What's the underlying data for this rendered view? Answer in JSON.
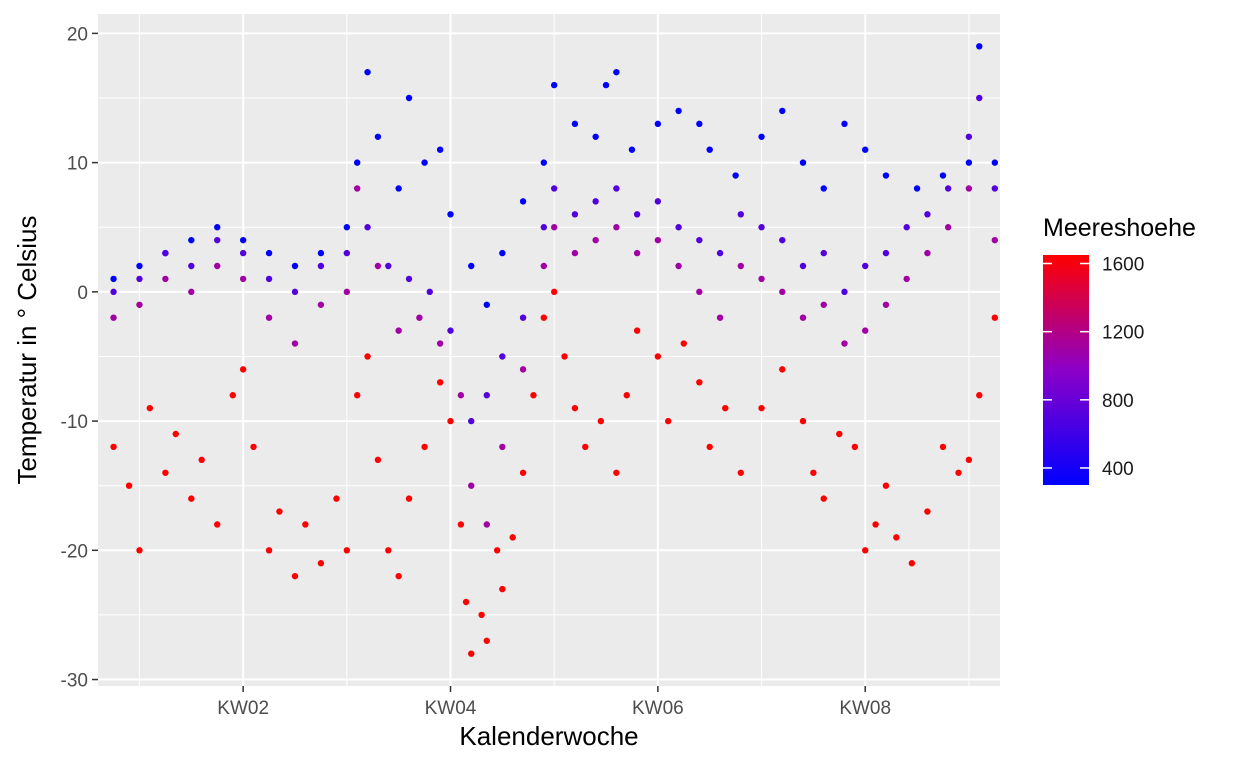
{
  "chart_data": {
    "type": "scatter",
    "title": "",
    "xlabel": "Kalenderwoche",
    "ylabel": "Temperatur in ° Celsius",
    "x_tick_labels": [
      "KW02",
      "KW04",
      "KW06",
      "KW08"
    ],
    "x_tick_weeks": [
      2,
      4,
      6,
      8
    ],
    "xlim_weeks": [
      0.6,
      9.3
    ],
    "y_ticks": [
      -30,
      -20,
      -10,
      0,
      10,
      20
    ],
    "ylim": [
      -30.5,
      21.5
    ],
    "grid": true,
    "legend": {
      "title": "Meereshoehe",
      "placement": "right",
      "type": "colorbar",
      "labels": [
        1600,
        1200,
        800,
        400
      ],
      "range": [
        300,
        1650
      ],
      "low_color": "#0000FF",
      "high_color": "#FF0000"
    },
    "series": [
      {
        "color_value": 300,
        "points": [
          [
            0.75,
            1
          ],
          [
            1.0,
            2
          ],
          [
            1.25,
            3
          ],
          [
            1.5,
            4
          ],
          [
            1.75,
            5
          ],
          [
            2.0,
            4
          ],
          [
            2.25,
            3
          ],
          [
            2.5,
            2
          ],
          [
            2.75,
            3
          ],
          [
            3.0,
            5
          ],
          [
            3.1,
            10
          ],
          [
            3.2,
            17
          ],
          [
            3.3,
            12
          ],
          [
            3.5,
            8
          ],
          [
            3.6,
            15
          ],
          [
            3.75,
            10
          ],
          [
            3.9,
            11
          ],
          [
            4.0,
            6
          ],
          [
            4.2,
            2
          ],
          [
            4.35,
            -1
          ],
          [
            4.5,
            3
          ],
          [
            4.7,
            7
          ],
          [
            4.9,
            10
          ],
          [
            5.0,
            16
          ],
          [
            5.2,
            13
          ],
          [
            5.4,
            12
          ],
          [
            5.5,
            16
          ],
          [
            5.6,
            17
          ],
          [
            5.75,
            11
          ],
          [
            6.0,
            13
          ],
          [
            6.2,
            14
          ],
          [
            6.4,
            13
          ],
          [
            6.5,
            11
          ],
          [
            6.75,
            9
          ],
          [
            7.0,
            12
          ],
          [
            7.2,
            14
          ],
          [
            7.4,
            10
          ],
          [
            7.6,
            8
          ],
          [
            7.8,
            13
          ],
          [
            8.0,
            11
          ],
          [
            8.2,
            9
          ],
          [
            8.5,
            8
          ],
          [
            8.75,
            9
          ],
          [
            9.0,
            10
          ],
          [
            9.1,
            19
          ],
          [
            9.25,
            10
          ]
        ]
      },
      {
        "color_value": 700,
        "points": [
          [
            0.75,
            0
          ],
          [
            1.0,
            1
          ],
          [
            1.25,
            3
          ],
          [
            1.5,
            2
          ],
          [
            1.75,
            4
          ],
          [
            2.0,
            3
          ],
          [
            2.25,
            1
          ],
          [
            2.5,
            0
          ],
          [
            2.75,
            2
          ],
          [
            3.0,
            3
          ],
          [
            3.2,
            5
          ],
          [
            3.4,
            2
          ],
          [
            3.6,
            1
          ],
          [
            3.8,
            0
          ],
          [
            4.0,
            -3
          ],
          [
            4.2,
            -10
          ],
          [
            4.35,
            -8
          ],
          [
            4.5,
            -5
          ],
          [
            4.7,
            -2
          ],
          [
            4.9,
            5
          ],
          [
            5.0,
            8
          ],
          [
            5.2,
            6
          ],
          [
            5.4,
            7
          ],
          [
            5.6,
            8
          ],
          [
            5.8,
            6
          ],
          [
            6.0,
            7
          ],
          [
            6.2,
            5
          ],
          [
            6.4,
            4
          ],
          [
            6.6,
            3
          ],
          [
            6.8,
            6
          ],
          [
            7.0,
            5
          ],
          [
            7.2,
            4
          ],
          [
            7.4,
            2
          ],
          [
            7.6,
            3
          ],
          [
            7.8,
            0
          ],
          [
            8.0,
            2
          ],
          [
            8.2,
            3
          ],
          [
            8.4,
            5
          ],
          [
            8.6,
            6
          ],
          [
            8.8,
            8
          ],
          [
            9.0,
            12
          ],
          [
            9.1,
            15
          ],
          [
            9.25,
            8
          ]
        ]
      },
      {
        "color_value": 1100,
        "points": [
          [
            0.75,
            -2
          ],
          [
            1.0,
            -1
          ],
          [
            1.25,
            1
          ],
          [
            1.5,
            0
          ],
          [
            1.75,
            2
          ],
          [
            2.0,
            1
          ],
          [
            2.25,
            -2
          ],
          [
            2.5,
            -4
          ],
          [
            2.75,
            -1
          ],
          [
            3.0,
            0
          ],
          [
            3.1,
            8
          ],
          [
            3.3,
            2
          ],
          [
            3.5,
            -3
          ],
          [
            3.7,
            -2
          ],
          [
            3.9,
            -4
          ],
          [
            4.1,
            -8
          ],
          [
            4.2,
            -15
          ],
          [
            4.35,
            -18
          ],
          [
            4.5,
            -12
          ],
          [
            4.7,
            -6
          ],
          [
            4.9,
            2
          ],
          [
            5.0,
            5
          ],
          [
            5.2,
            3
          ],
          [
            5.4,
            4
          ],
          [
            5.6,
            5
          ],
          [
            5.8,
            3
          ],
          [
            6.0,
            4
          ],
          [
            6.2,
            2
          ],
          [
            6.4,
            0
          ],
          [
            6.6,
            -2
          ],
          [
            6.8,
            2
          ],
          [
            7.0,
            1
          ],
          [
            7.2,
            0
          ],
          [
            7.4,
            -2
          ],
          [
            7.6,
            -1
          ],
          [
            7.8,
            -4
          ],
          [
            8.0,
            -3
          ],
          [
            8.2,
            -1
          ],
          [
            8.4,
            1
          ],
          [
            8.6,
            3
          ],
          [
            8.8,
            5
          ],
          [
            9.0,
            8
          ],
          [
            9.25,
            4
          ]
        ]
      },
      {
        "color_value": 1650,
        "points": [
          [
            0.75,
            -12
          ],
          [
            0.9,
            -15
          ],
          [
            1.0,
            -20
          ],
          [
            1.1,
            -9
          ],
          [
            1.25,
            -14
          ],
          [
            1.35,
            -11
          ],
          [
            1.5,
            -16
          ],
          [
            1.6,
            -13
          ],
          [
            1.75,
            -18
          ],
          [
            1.9,
            -8
          ],
          [
            2.0,
            -6
          ],
          [
            2.1,
            -12
          ],
          [
            2.25,
            -20
          ],
          [
            2.35,
            -17
          ],
          [
            2.5,
            -22
          ],
          [
            2.6,
            -18
          ],
          [
            2.75,
            -21
          ],
          [
            2.9,
            -16
          ],
          [
            3.0,
            -20
          ],
          [
            3.1,
            -8
          ],
          [
            3.2,
            -5
          ],
          [
            3.3,
            -13
          ],
          [
            3.4,
            -20
          ],
          [
            3.5,
            -22
          ],
          [
            3.6,
            -16
          ],
          [
            3.75,
            -12
          ],
          [
            3.9,
            -7
          ],
          [
            4.0,
            -10
          ],
          [
            4.1,
            -18
          ],
          [
            4.15,
            -24
          ],
          [
            4.2,
            -28
          ],
          [
            4.3,
            -25
          ],
          [
            4.35,
            -27
          ],
          [
            4.45,
            -20
          ],
          [
            4.5,
            -23
          ],
          [
            4.6,
            -19
          ],
          [
            4.7,
            -14
          ],
          [
            4.8,
            -8
          ],
          [
            4.9,
            -2
          ],
          [
            5.0,
            0
          ],
          [
            5.1,
            -5
          ],
          [
            5.2,
            -9
          ],
          [
            5.3,
            -12
          ],
          [
            5.45,
            -10
          ],
          [
            5.6,
            -14
          ],
          [
            5.7,
            -8
          ],
          [
            5.8,
            -3
          ],
          [
            6.0,
            -5
          ],
          [
            6.1,
            -10
          ],
          [
            6.25,
            -4
          ],
          [
            6.4,
            -7
          ],
          [
            6.5,
            -12
          ],
          [
            6.65,
            -9
          ],
          [
            6.8,
            -14
          ],
          [
            7.0,
            -9
          ],
          [
            7.2,
            -6
          ],
          [
            7.4,
            -10
          ],
          [
            7.5,
            -14
          ],
          [
            7.6,
            -16
          ],
          [
            7.75,
            -11
          ],
          [
            7.9,
            -12
          ],
          [
            8.0,
            -20
          ],
          [
            8.1,
            -18
          ],
          [
            8.2,
            -15
          ],
          [
            8.3,
            -19
          ],
          [
            8.45,
            -21
          ],
          [
            8.6,
            -17
          ],
          [
            8.75,
            -12
          ],
          [
            8.9,
            -14
          ],
          [
            9.0,
            -13
          ],
          [
            9.1,
            -8
          ],
          [
            9.25,
            -2
          ]
        ]
      }
    ]
  }
}
